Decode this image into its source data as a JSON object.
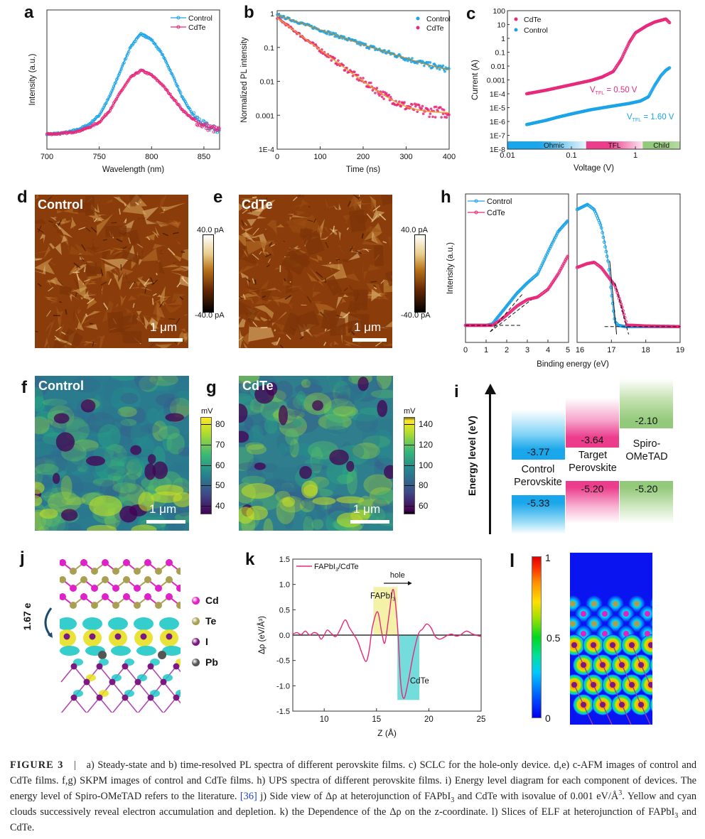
{
  "figure": {
    "panels": {
      "a": "a",
      "b": "b",
      "c": "c",
      "d": "d",
      "e": "e",
      "f": "f",
      "g": "g",
      "h": "h",
      "i": "i",
      "j": "j",
      "k": "k",
      "l": "l"
    }
  },
  "colors": {
    "control": "#1aa3e8",
    "cdte": "#e8287a",
    "fit_control": "#b08a3a",
    "fit_cdte": "#f0a020",
    "spiro": "#93c97a"
  },
  "chart_data": [
    {
      "id": "a",
      "type": "line",
      "title": "",
      "xlabel": "Wavelength (nm)",
      "ylabel": "Intensity (a.u.)",
      "xlim": [
        700,
        865
      ],
      "ylim": [
        0,
        1
      ],
      "xticks": [
        700,
        750,
        800,
        850
      ],
      "yticks": [],
      "legend": "top-right",
      "series": [
        {
          "name": "Control",
          "x": [
            700,
            710,
            720,
            730,
            740,
            750,
            760,
            770,
            780,
            790,
            800,
            810,
            820,
            830,
            840,
            850,
            860,
            865
          ],
          "values": [
            0.02,
            0.025,
            0.035,
            0.06,
            0.1,
            0.18,
            0.34,
            0.55,
            0.76,
            0.87,
            0.82,
            0.7,
            0.52,
            0.32,
            0.18,
            0.1,
            0.06,
            0.05
          ]
        },
        {
          "name": "CdTe",
          "x": [
            700,
            710,
            720,
            730,
            740,
            750,
            760,
            770,
            780,
            790,
            800,
            810,
            820,
            830,
            840,
            850,
            860,
            865
          ],
          "values": [
            0.02,
            0.022,
            0.03,
            0.045,
            0.075,
            0.12,
            0.22,
            0.37,
            0.5,
            0.56,
            0.52,
            0.44,
            0.33,
            0.22,
            0.14,
            0.09,
            0.06,
            0.05
          ]
        }
      ]
    },
    {
      "id": "b",
      "type": "scatter",
      "title": "",
      "xlabel": "Time (ns)",
      "ylabel": "Normalized PL intensity",
      "xlim": [
        0,
        400
      ],
      "ylim": [
        0.0001,
        1
      ],
      "yscale": "log",
      "xticks": [
        0,
        100,
        200,
        300,
        400
      ],
      "ytick_labels": [
        "1E-4",
        "0.001",
        "0.01",
        "0.1",
        "1"
      ],
      "legend": "top-right",
      "series": [
        {
          "name": "Control",
          "x": [
            0,
            50,
            100,
            150,
            200,
            250,
            300,
            350,
            400
          ],
          "values": [
            0.9,
            0.55,
            0.33,
            0.2,
            0.12,
            0.075,
            0.048,
            0.031,
            0.022
          ]
        },
        {
          "name": "CdTe",
          "x": [
            0,
            50,
            100,
            150,
            200,
            250,
            300,
            350,
            400
          ],
          "values": [
            0.75,
            0.25,
            0.085,
            0.029,
            0.01,
            0.0038,
            0.0018,
            0.0013,
            0.0012
          ]
        }
      ]
    },
    {
      "id": "c",
      "type": "scatter",
      "title": "",
      "xlabel": "Voltage (V)",
      "ylabel": "Current (A)",
      "xlim": [
        0.01,
        5
      ],
      "xscale": "log",
      "ylim": [
        1e-08,
        100
      ],
      "yscale": "log",
      "xtick_labels": [
        "0.01",
        "0.1",
        "1"
      ],
      "ytick_labels": [
        "1E-8",
        "1E-7",
        "1E-6",
        "1E-5",
        "1E-4",
        "0.001",
        "0.01",
        "0.1",
        "1",
        "10",
        "100"
      ],
      "legend": "top-left",
      "series": [
        {
          "name": "CdTe",
          "x": [
            0.02,
            0.04,
            0.06,
            0.1,
            0.2,
            0.3,
            0.45,
            0.6,
            0.8,
            1.0,
            1.5,
            2.0,
            3.0,
            3.5
          ],
          "values": [
            0.0001,
            0.00018,
            0.00027,
            0.00045,
            0.0009,
            0.0016,
            0.004,
            0.03,
            0.5,
            2.5,
            8,
            15,
            25,
            12
          ]
        },
        {
          "name": "Control",
          "x": [
            0.02,
            0.04,
            0.06,
            0.1,
            0.2,
            0.4,
            0.8,
            1.2,
            1.6,
            2.0,
            2.5,
            3.0,
            3.5
          ],
          "values": [
            6e-07,
            1.2e-06,
            2e-06,
            3.5e-06,
            7e-06,
            1.2e-05,
            2e-05,
            3e-05,
            6e-05,
            0.0004,
            0.002,
            0.005,
            0.008
          ]
        }
      ],
      "annotations": [
        {
          "text": "V",
          "sub": "TFL",
          "value": " = 0.50 V",
          "series": "CdTe"
        },
        {
          "text": "V",
          "sub": "TFL",
          "value": " = 1.60 V",
          "series": "Control"
        }
      ],
      "regions": [
        {
          "label": "Ohmic",
          "from": 0.01,
          "to": 0.17
        },
        {
          "label": "TFL",
          "from": 0.17,
          "to": 1.3
        },
        {
          "label": "Child",
          "from": 1.3,
          "to": 5
        }
      ]
    },
    {
      "id": "h",
      "type": "line",
      "title": "",
      "xlabel": "Binding energy (eV)",
      "ylabel": "Intensity (a.u.)",
      "legend": "top-left",
      "subplots": [
        {
          "xlim": [
            0,
            5
          ],
          "xticks": [
            0,
            1,
            2,
            3,
            4,
            5
          ],
          "series": [
            {
              "name": "Control",
              "x": [
                0,
                1,
                1.3,
                1.6,
                2,
                2.5,
                3,
                3.5,
                4,
                4.5,
                5
              ],
              "values": [
                0.05,
                0.05,
                0.06,
                0.12,
                0.2,
                0.3,
                0.38,
                0.45,
                0.62,
                0.78,
                0.87
              ]
            },
            {
              "name": "CdTe",
              "x": [
                0,
                1,
                1.3,
                1.6,
                2,
                2.5,
                3,
                3.5,
                4,
                4.5,
                5
              ],
              "values": [
                0.05,
                0.05,
                0.05,
                0.08,
                0.13,
                0.2,
                0.25,
                0.27,
                0.33,
                0.45,
                0.6
              ]
            }
          ],
          "onsets": {
            "Control": 1.33,
            "CdTe": 1.45
          }
        },
        {
          "xlim": [
            16,
            19
          ],
          "xticks": [
            16,
            17,
            18,
            19
          ],
          "series": [
            {
              "name": "Control",
              "x": [
                16,
                16.3,
                16.5,
                16.7,
                16.9,
                17.0,
                17.1,
                17.2,
                17.4,
                18,
                19
              ],
              "values": [
                0.95,
                0.99,
                0.95,
                0.82,
                0.55,
                0.3,
                0.08,
                0.05,
                0.04,
                0.04,
                0.04
              ]
            },
            {
              "name": "CdTe",
              "x": [
                16,
                16.3,
                16.5,
                16.7,
                16.9,
                17.1,
                17.3,
                17.45,
                17.6,
                18,
                19
              ],
              "values": [
                0.5,
                0.53,
                0.54,
                0.5,
                0.43,
                0.36,
                0.2,
                0.05,
                0.05,
                0.045,
                0.04
              ]
            }
          ],
          "cutoffs": {
            "Control": 17.13,
            "CdTe": 17.45
          }
        }
      ]
    },
    {
      "id": "k",
      "type": "line",
      "title": "",
      "xlabel": "Z (Å)",
      "ylabel": "Δρ (eV/Å³)",
      "xlim": [
        7,
        25
      ],
      "ylim": [
        -1.5,
        1.5
      ],
      "xticks": [
        10,
        15,
        20,
        25
      ],
      "yticks": [
        -1.5,
        -1.0,
        -0.5,
        0.0,
        0.5,
        1.0,
        1.5
      ],
      "ytick_labels": [
        "-1.5",
        "-1.0",
        "-0.5",
        "0.0",
        "0.5",
        "1.0",
        "1.5"
      ],
      "legend": "top-left",
      "series": [
        {
          "name": "FAPbI3/CdTe",
          "x": [
            7,
            7.4,
            7.8,
            8.2,
            8.6,
            9.0,
            9.4,
            9.7,
            10.0,
            10.3,
            10.7,
            11.1,
            11.5,
            12.0,
            12.4,
            12.8,
            13.2,
            13.6,
            14.0,
            14.3,
            14.6,
            15.1,
            15.5,
            15.8,
            16.2,
            16.6,
            17.0,
            17.3,
            17.6,
            18.0,
            18.5,
            19.0,
            19.4,
            19.8,
            20.2,
            20.6,
            21.0,
            21.4,
            21.8,
            22.2,
            22.6,
            23.0,
            23.6,
            24.2,
            25.0
          ],
          "values": [
            0.02,
            0.05,
            0.01,
            0.08,
            0.0,
            0.05,
            0.02,
            -0.08,
            0.0,
            0.1,
            0.03,
            -0.03,
            0.1,
            0.3,
            0.15,
            0.02,
            -0.12,
            -0.35,
            -0.52,
            -0.3,
            0.15,
            0.46,
            0.05,
            -0.15,
            0.4,
            0.9,
            0.2,
            -0.9,
            -1.25,
            -0.95,
            -0.4,
            0.02,
            0.12,
            0.22,
            0.15,
            -0.02,
            -0.08,
            -0.05,
            0.0,
            0.02,
            -0.02,
            0.0,
            0.08,
            0.02,
            -0.03
          ]
        }
      ],
      "regions": [
        {
          "label": "FAPbI3",
          "from": 14.7,
          "to": 17.0,
          "ymin": 0,
          "ymax": 0.95,
          "color": "#f2ee9a"
        },
        {
          "label": "CdTe",
          "from": 17.0,
          "to": 19.1,
          "ymin": -1.28,
          "ymax": 0,
          "color": "#5dd6d6"
        }
      ],
      "arrow_label": "hole"
    }
  ],
  "panel_a": {
    "legend": [
      "Control",
      "CdTe"
    ]
  },
  "panel_b": {
    "legend": [
      "Control",
      "CdTe"
    ]
  },
  "panel_c": {
    "legend": [
      "CdTe",
      "Control"
    ],
    "vtfl_cdte": "= 0.50 V",
    "vtfl_control": "= 1.60 V",
    "v": "V",
    "sub": "TFL",
    "regions": [
      "Ohmic",
      "TFL",
      "Child"
    ]
  },
  "panel_d": {
    "label": "Control",
    "scale": "1 μm",
    "cb_max": "40.0 pA",
    "cb_min": "-40.0 pA"
  },
  "panel_e": {
    "label": "CdTe",
    "scale": "1 μm",
    "cb_max": "40.0 pA",
    "cb_min": "-40.0 pA"
  },
  "panel_f": {
    "label": "Control",
    "scale": "1 μm",
    "cb_unit": "mV",
    "cb_ticks": [
      "80",
      "70",
      "60",
      "50",
      "40"
    ]
  },
  "panel_g": {
    "label": "CdTe",
    "scale": "1 μm",
    "cb_unit": "mV",
    "cb_ticks": [
      "140",
      "120",
      "100",
      "80",
      "60"
    ]
  },
  "panel_h": {
    "legend": [
      "Control",
      "CdTe"
    ]
  },
  "panel_i": {
    "ylabel": "Energy level (eV)",
    "columns": [
      {
        "name_line1": "Control",
        "name_line2": "Perovskite",
        "cbm": "-3.77",
        "vbm": "-5.33"
      },
      {
        "name_line1": "Target",
        "name_line2": "Perovskite",
        "cbm": "-3.64",
        "vbm": "-5.20"
      },
      {
        "name_line1": "Spiro-",
        "name_line2": "OMeTAD",
        "cbm": "-2.10",
        "vbm": "-5.20"
      }
    ]
  },
  "panel_j": {
    "charge": "1.67 e",
    "legend": [
      "Cd",
      "Te",
      "I",
      "Pb"
    ]
  },
  "panel_k": {
    "legend": "FAPbI",
    "legend_sub": "3",
    "legend_tail": "/CdTe",
    "hole": "hole",
    "fapbi": "FAPbI",
    "fapbi_sub": "3",
    "cdte": "CdTe"
  },
  "panel_l": {
    "cb_max": "1",
    "cb_mid": "0.5",
    "cb_min": "0"
  },
  "caption": {
    "fig_label": "FIGURE 3",
    "sep": "|",
    "t1": "a) Steady-state and b) time-resolved PL spectra of different perovskite films. c) SCLC for the hole-only device. d,e) c-AFM images of control and CdTe films. f,g) SKPM images of control and CdTe films. h) UPS spectra of different perovskite films. i) Energy level diagram for each component of devices. The energy level of Spiro-OMeTAD refers to the literature. ",
    "ref": "[36]",
    "t2": " j) Side view of Δρ at heterojunction of FAPbI",
    "t2_sub": "3",
    "t3": " and CdTe with isovalue of 0.001 eV/Å",
    "t3_sup": "3",
    "t4": ". Yellow and cyan clouds successively reveal electron accumulation and depletion. k) the Dependence of the Δρ on the z-coordinate. l) Slices of ELF at heterojunction of FAPbI",
    "t4_sub": "3",
    "t5": " and CdTe."
  }
}
